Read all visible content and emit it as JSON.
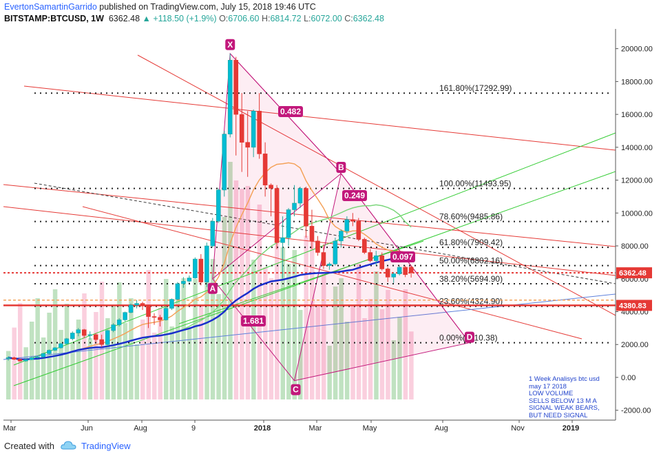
{
  "header": {
    "author": "EvertonSamartinGarrido",
    "published": "published on TradingView.com, July 15, 2018 19:46 UTC",
    "symbol": "BITSTAMP:BTCUSD, 1W",
    "last": "6362.48",
    "change": "▲ +118.50 (+1.9%)",
    "o_label": "O:",
    "o_val": "6706.60",
    "h_label": "H:",
    "h_val": "6814.72",
    "l_label": "L:",
    "l_val": "6072.00",
    "c_label": "C:",
    "c_val": "6362.48"
  },
  "footer": {
    "created": "Created with",
    "brand": "TradingView"
  },
  "note": "1 Week Analisys btc usd\nmay 17 2018\nLOW VOLUME\nSELLS BELOW 13 M A\nSIGNAL WEAK BEARS,\nBUT NEED SIGNAL",
  "colors": {
    "up": "#26a69a",
    "upFill": "#00bcd4",
    "down": "#e53935",
    "fib": "#222222",
    "pattern": "#c2187b"
  },
  "chart_data": {
    "type": "candlestick",
    "symbol": "BITSTAMP:BTCUSD",
    "timeframe": "1W",
    "ylim": [
      -2600,
      21200
    ],
    "y_ticks": [
      "20000.00",
      "18000.00",
      "16000.00",
      "14000.00",
      "12000.00",
      "10000.00",
      "8000.00",
      "6000.00",
      "4000.00",
      "2000.00",
      "0.00",
      "-2000.00"
    ],
    "x_ticks": [
      "Mar",
      "Jun",
      "Aug",
      "9",
      "2018",
      "Mar",
      "May",
      "Aug",
      "Nov",
      "2019"
    ],
    "candles": [
      {
        "o": 1150,
        "h": 1280,
        "l": 1020,
        "c": 1200
      },
      {
        "o": 1200,
        "h": 1260,
        "l": 1050,
        "c": 1100
      },
      {
        "o": 1100,
        "h": 1150,
        "l": 950,
        "c": 1000
      },
      {
        "o": 1000,
        "h": 1120,
        "l": 950,
        "c": 1080
      },
      {
        "o": 1080,
        "h": 1250,
        "l": 1050,
        "c": 1200
      },
      {
        "o": 1200,
        "h": 1300,
        "l": 1150,
        "c": 1250
      },
      {
        "o": 1250,
        "h": 1500,
        "l": 1200,
        "c": 1450
      },
      {
        "o": 1450,
        "h": 1700,
        "l": 1400,
        "c": 1650
      },
      {
        "o": 1650,
        "h": 1850,
        "l": 1600,
        "c": 1800
      },
      {
        "o": 1800,
        "h": 2100,
        "l": 1750,
        "c": 2050
      },
      {
        "o": 2050,
        "h": 2400,
        "l": 2000,
        "c": 2350
      },
      {
        "o": 2350,
        "h": 2800,
        "l": 2250,
        "c": 2700
      },
      {
        "o": 2700,
        "h": 3000,
        "l": 2500,
        "c": 2900
      },
      {
        "o": 2900,
        "h": 2950,
        "l": 2400,
        "c": 2550
      },
      {
        "o": 2550,
        "h": 2800,
        "l": 2300,
        "c": 2600
      },
      {
        "o": 2600,
        "h": 2700,
        "l": 2150,
        "c": 2300
      },
      {
        "o": 2300,
        "h": 2600,
        "l": 1850,
        "c": 2000
      },
      {
        "o": 2000,
        "h": 2900,
        "l": 1900,
        "c": 2850
      },
      {
        "o": 2850,
        "h": 3300,
        "l": 2750,
        "c": 3200
      },
      {
        "o": 3200,
        "h": 3600,
        "l": 3100,
        "c": 3500
      },
      {
        "o": 3500,
        "h": 4000,
        "l": 3400,
        "c": 3950
      },
      {
        "o": 3950,
        "h": 4500,
        "l": 3900,
        "c": 4400
      },
      {
        "o": 4400,
        "h": 4700,
        "l": 4200,
        "c": 4500
      },
      {
        "o": 4500,
        "h": 4600,
        "l": 4100,
        "c": 4350
      },
      {
        "o": 4350,
        "h": 4400,
        "l": 3000,
        "c": 3700
      },
      {
        "o": 3700,
        "h": 3900,
        "l": 3200,
        "c": 3650
      },
      {
        "o": 3650,
        "h": 3800,
        "l": 3100,
        "c": 3500
      },
      {
        "o": 3500,
        "h": 4300,
        "l": 3450,
        "c": 4200
      },
      {
        "o": 4200,
        "h": 4800,
        "l": 4100,
        "c": 4750
      },
      {
        "o": 4750,
        "h": 5800,
        "l": 4700,
        "c": 5700
      },
      {
        "o": 5700,
        "h": 6100,
        "l": 5450,
        "c": 5850
      },
      {
        "o": 5850,
        "h": 6200,
        "l": 5750,
        "c": 6050
      },
      {
        "o": 6050,
        "h": 7300,
        "l": 6000,
        "c": 7200
      },
      {
        "o": 7200,
        "h": 7500,
        "l": 5600,
        "c": 5800
      },
      {
        "o": 5800,
        "h": 8200,
        "l": 5500,
        "c": 8000
      },
      {
        "o": 8000,
        "h": 9700,
        "l": 7900,
        "c": 9500
      },
      {
        "o": 9500,
        "h": 11500,
        "l": 9400,
        "c": 11400
      },
      {
        "o": 11400,
        "h": 15000,
        "l": 11000,
        "c": 14800
      },
      {
        "o": 14800,
        "h": 19700,
        "l": 14600,
        "c": 19300
      },
      {
        "o": 19300,
        "h": 19500,
        "l": 13500,
        "c": 16000
      },
      {
        "o": 16000,
        "h": 17300,
        "l": 12500,
        "c": 14300
      },
      {
        "o": 14300,
        "h": 16200,
        "l": 12200,
        "c": 14000
      },
      {
        "o": 14000,
        "h": 16300,
        "l": 13400,
        "c": 16200
      },
      {
        "o": 16200,
        "h": 17300,
        "l": 13300,
        "c": 13600
      },
      {
        "o": 13600,
        "h": 14300,
        "l": 11000,
        "c": 11700
      },
      {
        "o": 11700,
        "h": 11800,
        "l": 9800,
        "c": 11500
      },
      {
        "o": 11500,
        "h": 11700,
        "l": 7800,
        "c": 8200
      },
      {
        "o": 8200,
        "h": 9800,
        "l": 6000,
        "c": 8500
      },
      {
        "o": 8500,
        "h": 10300,
        "l": 8000,
        "c": 10200
      },
      {
        "o": 10200,
        "h": 11700,
        "l": 9800,
        "c": 10600
      },
      {
        "o": 10600,
        "h": 11600,
        "l": 10300,
        "c": 11500
      },
      {
        "o": 11500,
        "h": 11600,
        "l": 8500,
        "c": 9200
      },
      {
        "o": 9200,
        "h": 10200,
        "l": 7800,
        "c": 8300
      },
      {
        "o": 8300,
        "h": 8600,
        "l": 7400,
        "c": 7600
      },
      {
        "o": 7600,
        "h": 8100,
        "l": 6600,
        "c": 6800
      },
      {
        "o": 6800,
        "h": 7000,
        "l": 6550,
        "c": 6900
      },
      {
        "o": 6900,
        "h": 8500,
        "l": 6800,
        "c": 8300
      },
      {
        "o": 8300,
        "h": 9000,
        "l": 7900,
        "c": 8900
      },
      {
        "o": 8900,
        "h": 9800,
        "l": 8700,
        "c": 9600
      },
      {
        "o": 9600,
        "h": 10000,
        "l": 9200,
        "c": 9500
      },
      {
        "o": 9500,
        "h": 9700,
        "l": 8300,
        "c": 8400
      },
      {
        "o": 8400,
        "h": 8500,
        "l": 7500,
        "c": 7600
      },
      {
        "o": 7600,
        "h": 7800,
        "l": 7000,
        "c": 7100
      },
      {
        "o": 7100,
        "h": 7700,
        "l": 6800,
        "c": 7400
      },
      {
        "o": 7400,
        "h": 7600,
        "l": 6500,
        "c": 6600
      },
      {
        "o": 6600,
        "h": 6700,
        "l": 5800,
        "c": 6100
      },
      {
        "o": 6100,
        "h": 6400,
        "l": 5750,
        "c": 6300
      },
      {
        "o": 6300,
        "h": 6800,
        "l": 6200,
        "c": 6700
      },
      {
        "o": 6700,
        "h": 6800,
        "l": 6100,
        "c": 6250
      },
      {
        "o": 6706.6,
        "h": 6814.72,
        "l": 6072,
        "c": 6362.48
      }
    ],
    "fib_levels": [
      {
        "label": "161.80%(17292.99)",
        "value": 17292.99
      },
      {
        "label": "100.00%(11493.95)",
        "value": 11493.95
      },
      {
        "label": "78.60%(9485.86)",
        "value": 9485.86
      },
      {
        "label": "61.80%(7909.42)",
        "value": 7909.42
      },
      {
        "label": "50.00%(6802.16)",
        "value": 6802.16
      },
      {
        "label": "38.20%(5694.90)",
        "value": 5694.9
      },
      {
        "label": "23.60%(4324.90)",
        "value": 4324.9
      },
      {
        "label": "0.00%(2110.38)",
        "value": 2110.38
      }
    ],
    "price_labels": [
      {
        "text": "6362.48",
        "value": 6362.48
      },
      {
        "text": "4380.83",
        "value": 4380.83
      }
    ],
    "pattern_points": [
      "X",
      "A",
      "B",
      "C",
      "D"
    ],
    "ratios": [
      "0.482",
      "0.249",
      "1.681",
      "0.097"
    ]
  }
}
